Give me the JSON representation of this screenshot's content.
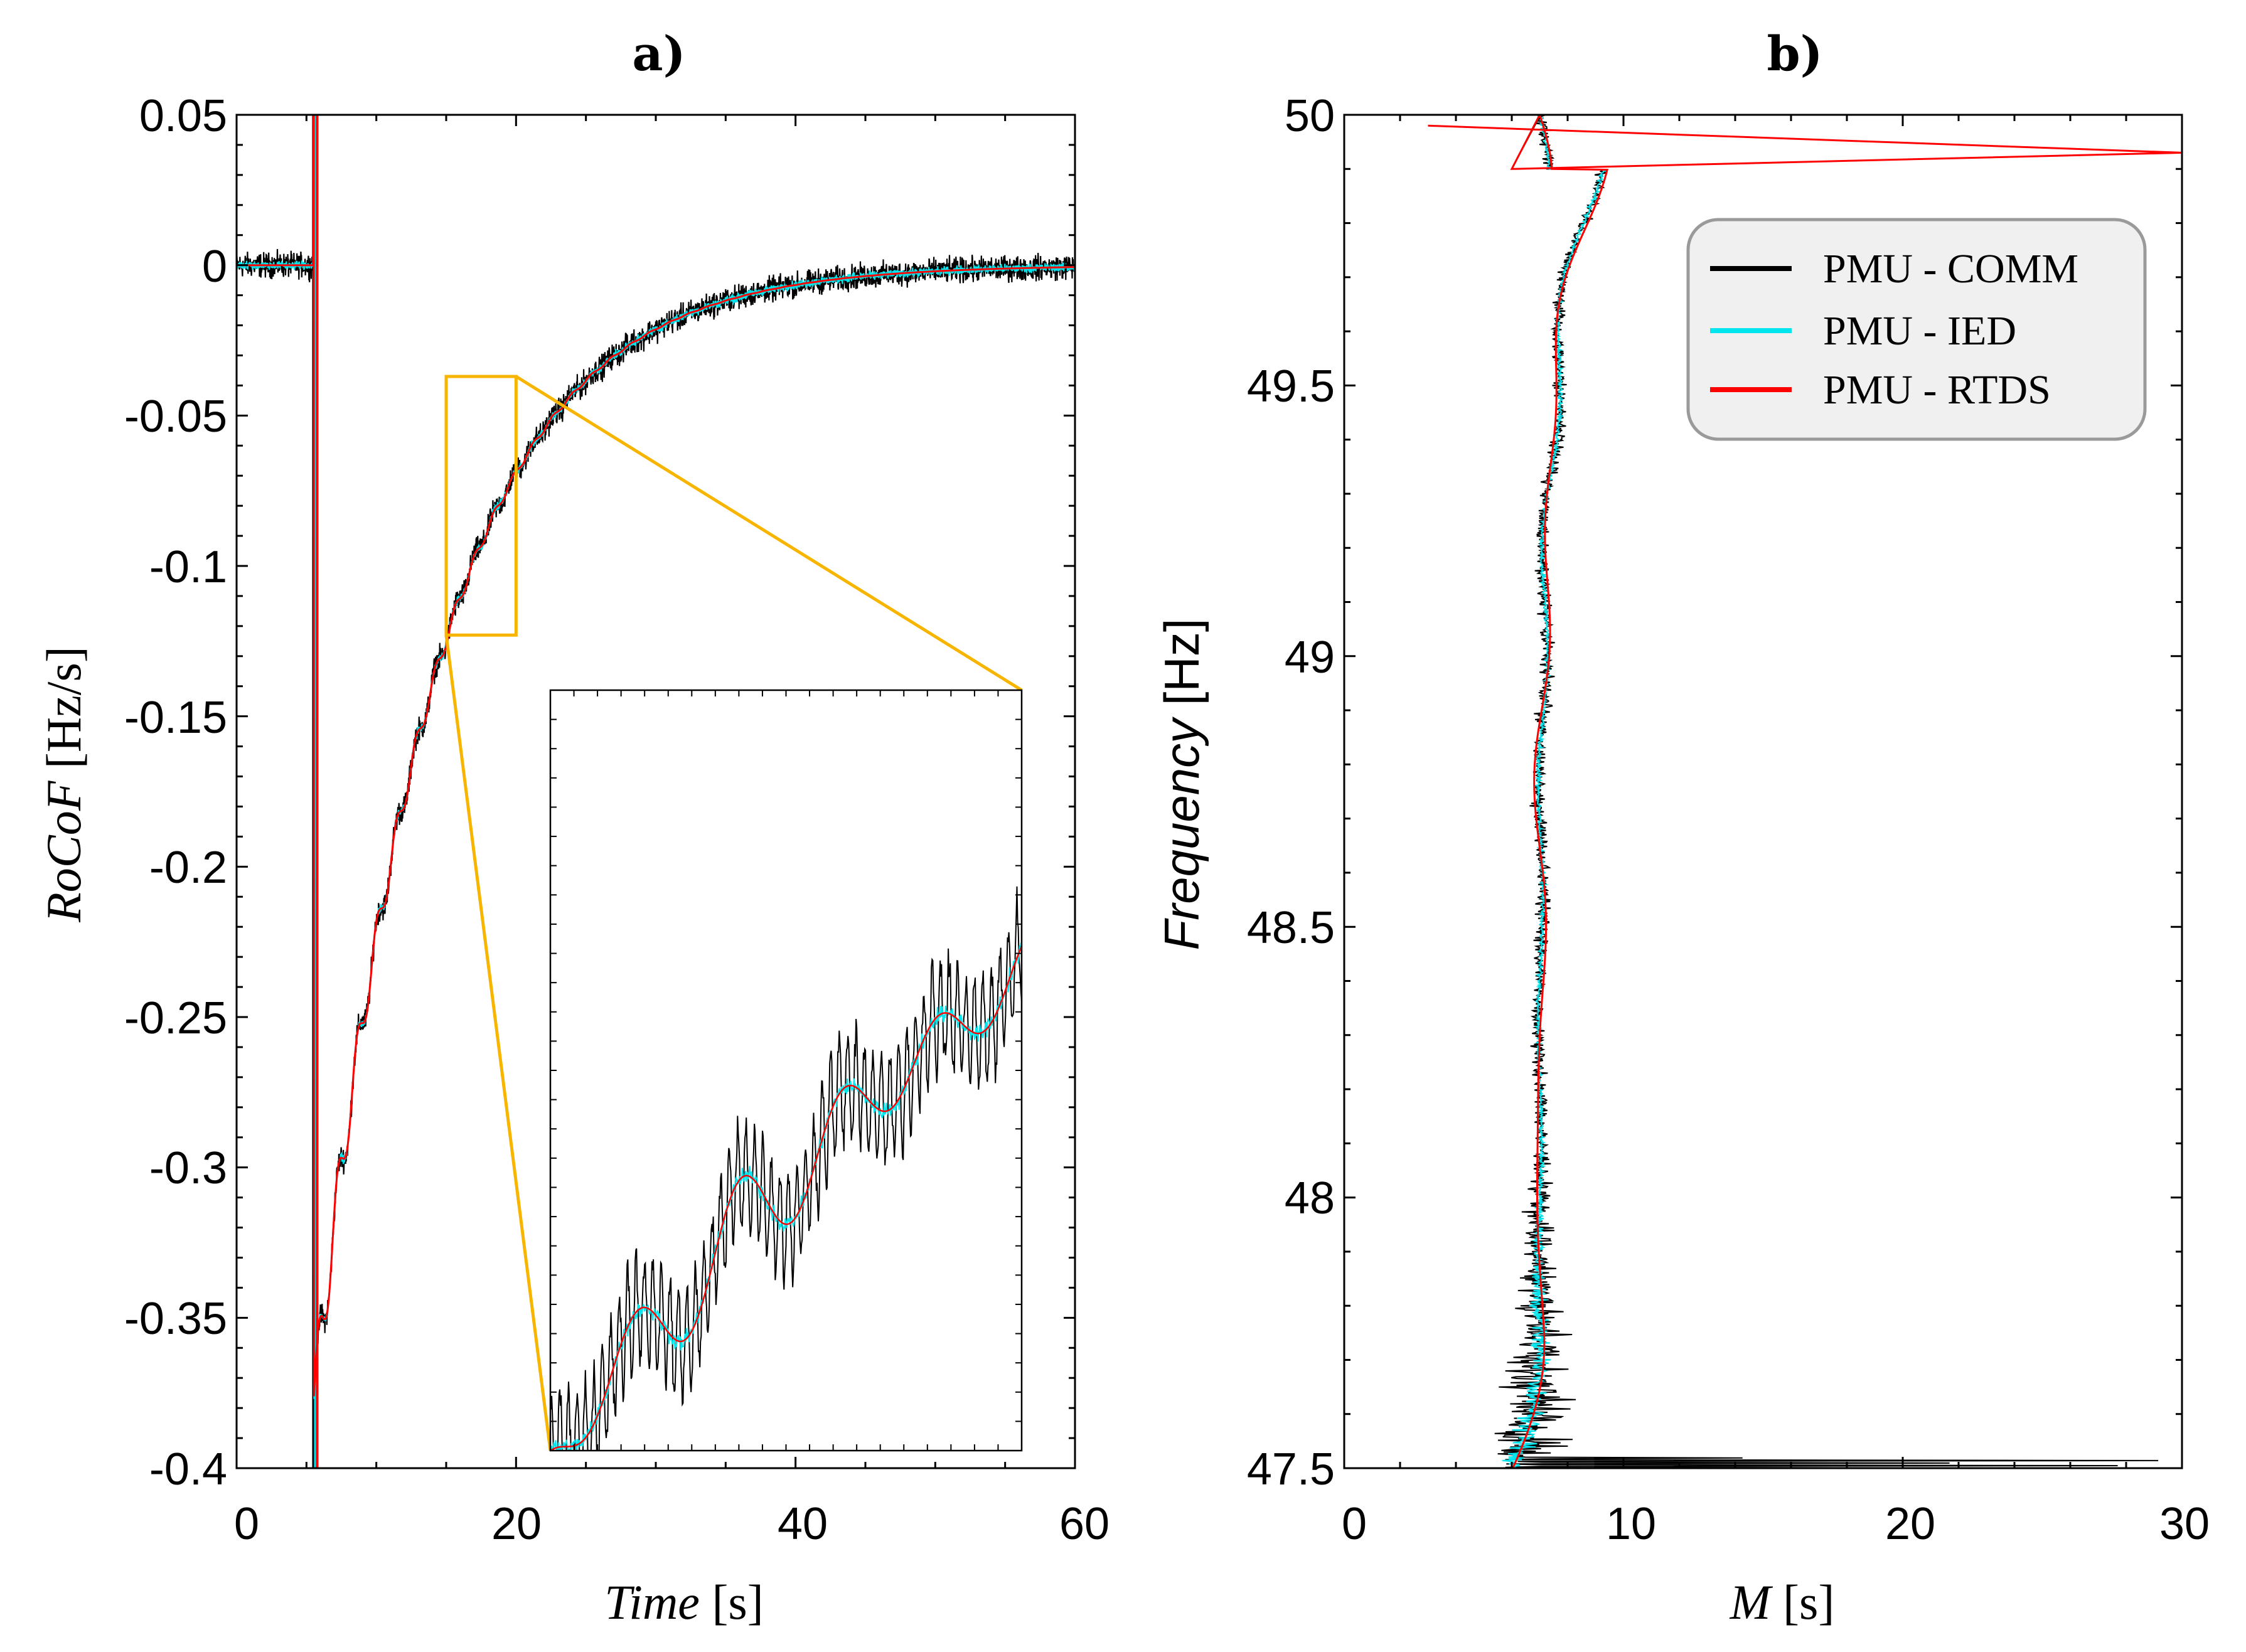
{
  "chart_data": [
    {
      "panel": "a)",
      "type": "line",
      "title": "a)",
      "xlabel_italic": "Time",
      "xlabel_unit": "[s]",
      "ylabel_italic": "RoCoF",
      "ylabel_unit": "[Hz/s]",
      "xlim": [
        0,
        60
      ],
      "ylim": [
        -0.4,
        0.05
      ],
      "xticks": [
        0,
        20,
        40,
        60
      ],
      "xtick_labels": [
        "0",
        "20",
        "40",
        "60"
      ],
      "yticks": [
        0.05,
        0,
        -0.05,
        -0.1,
        -0.15,
        -0.2,
        -0.25,
        -0.3,
        -0.35,
        -0.4
      ],
      "ytick_labels": [
        "0.05",
        "0",
        "-0.05",
        "-0.1",
        "-0.15",
        "-0.2",
        "-0.25",
        "-0.3",
        "-0.35",
        "-0.4"
      ],
      "event_time": 5.5,
      "rocof_min": -0.38,
      "recovery_tau": 8.5,
      "series": [
        {
          "name": "PMU - COMM",
          "color": "#000000",
          "noise": 0.006
        },
        {
          "name": "PMU - IED",
          "color": "#00e5ee",
          "noise": 0.002
        },
        {
          "name": "PMU - RTDS",
          "color": "#ff0000",
          "noise": 0.0
        }
      ],
      "zoom_box": {
        "x": [
          15,
          20
        ],
        "y": [
          -0.123,
          -0.037
        ]
      },
      "inset": {
        "xlim": [
          15,
          20
        ],
        "ylim": [
          -0.123,
          -0.037
        ]
      }
    },
    {
      "panel": "b)",
      "type": "line",
      "title": "b)",
      "xlabel_italic": "M",
      "xlabel_unit": "[s]",
      "ylabel_italic": "Frequency",
      "ylabel_unit": "[Hz]",
      "xlim": [
        0,
        30
      ],
      "ylim": [
        47.5,
        50
      ],
      "xticks": [
        0,
        10,
        20,
        30
      ],
      "xtick_labels": [
        "0",
        "10",
        "20",
        "30"
      ],
      "yticks": [
        50,
        49.5,
        49,
        48.5,
        48,
        47.5
      ],
      "ytick_labels": [
        "50",
        "49.5",
        "49",
        "48.5",
        "48",
        "47.5"
      ],
      "mean_M": 7.0,
      "legend": {
        "position": "top-right",
        "entries": [
          "PMU - COMM",
          "PMU - IED",
          "PMU - RTDS"
        ]
      },
      "series": [
        {
          "name": "PMU - COMM",
          "color": "#000000",
          "noise": 0.35
        },
        {
          "name": "PMU - IED",
          "color": "#00e5ee",
          "noise": 0.12
        },
        {
          "name": "PMU - RTDS",
          "color": "#ff0000",
          "noise": 0.0
        }
      ]
    }
  ]
}
